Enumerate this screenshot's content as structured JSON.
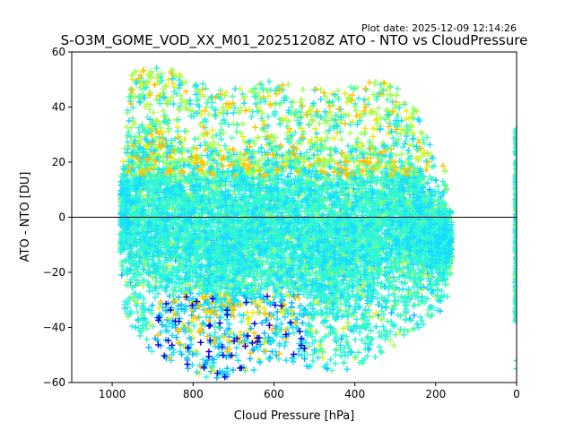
{
  "chart_data": {
    "type": "scatter",
    "plot_date": "Plot date: 2025-12-09 12:14:26",
    "title": "S-O3M_GOME_VOD_XX_M01_20251208Z ATO - NTO vs CloudPressure",
    "xlabel": "Cloud Pressure [hPa]",
    "ylabel": "ATO - NTO [DU]",
    "xlim": [
      1100,
      0
    ],
    "ylim": [
      -60,
      60
    ],
    "x_ticks": [
      1000,
      800,
      600,
      400,
      200,
      0
    ],
    "x_tick_labels": [
      "1000",
      "800",
      "600",
      "400",
      "200",
      "0"
    ],
    "y_ticks": [
      60,
      40,
      20,
      0,
      -20,
      -40,
      -60
    ],
    "y_tick_labels": [
      "60",
      "40",
      "20",
      "0",
      "−20",
      "−40",
      "−60"
    ],
    "reference_line_y": 0,
    "marker": "+",
    "grid": false,
    "colors": {
      "dark_blue": "#0000e0",
      "blue": "#0077ff",
      "sky": "#00b4ff",
      "cyan": "#17dcff",
      "aqua": "#2ff5d8",
      "mint": "#4dffaa",
      "lime": "#a0ff57",
      "yellow": "#e5f000",
      "orange": "#ffc000"
    },
    "density_envelope": {
      "description": "approximate cloud of points",
      "pressure_hPa": [
        980,
        950,
        900,
        850,
        800,
        750,
        700,
        650,
        600,
        550,
        500,
        450,
        400,
        350,
        300,
        250,
        200,
        160
      ],
      "upper_DU": [
        20,
        44,
        45,
        44,
        40,
        38,
        37,
        38,
        40,
        38,
        37,
        36,
        38,
        40,
        38,
        30,
        12,
        5
      ],
      "lower_DU": [
        -18,
        -30,
        -38,
        -42,
        -45,
        -48,
        -46,
        -45,
        -40,
        -42,
        -44,
        -45,
        -44,
        -40,
        -35,
        -30,
        -25,
        -18
      ]
    },
    "edge_column": {
      "pressure_hPa": 0,
      "upper_DU": 32,
      "lower_DU": -38
    }
  }
}
